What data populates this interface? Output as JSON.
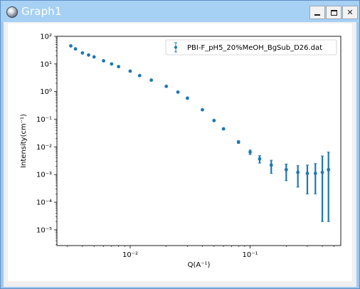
{
  "window": {
    "title": "Graph1",
    "icons": {
      "app": "sphere-icon",
      "minimize": "minimize-icon",
      "maximize": "maximize-icon",
      "close": "close-icon"
    },
    "close_glyph": "✕"
  },
  "chart_data": {
    "type": "scatter",
    "xlabel": "Q(A⁻¹)",
    "ylabel": "Intensity(cm⁻¹)",
    "xscale": "log",
    "yscale": "log",
    "xlim": [
      0.00245,
      0.57
    ],
    "ylim": [
      2.7e-06,
      100
    ],
    "x_ticks": [
      {
        "value": 0.01,
        "label": "10⁻²"
      },
      {
        "value": 0.1,
        "label": "10⁻¹"
      }
    ],
    "y_ticks": [
      {
        "value": 1e-05,
        "label": "10⁻⁵"
      },
      {
        "value": 0.0001,
        "label": "10⁻⁴"
      },
      {
        "value": 0.001,
        "label": "10⁻³"
      },
      {
        "value": 0.01,
        "label": "10⁻²"
      },
      {
        "value": 0.1,
        "label": "10⁻¹"
      },
      {
        "value": 1,
        "label": "10⁰"
      },
      {
        "value": 10,
        "label": "10¹"
      },
      {
        "value": 100,
        "label": "10²"
      }
    ],
    "grid": false,
    "legend_position": "top-right",
    "series": [
      {
        "name": "PBI-F_pH5_20%MeOH_BgSub_D26.dat",
        "color": "#1f77b4",
        "marker": "point with error bars",
        "x": [
          0.0032,
          0.0035,
          0.004,
          0.0045,
          0.005,
          0.006,
          0.007,
          0.008,
          0.01,
          0.012,
          0.015,
          0.02,
          0.025,
          0.03,
          0.04,
          0.05,
          0.06,
          0.08,
          0.1,
          0.12,
          0.15,
          0.2,
          0.25,
          0.3,
          0.35,
          0.4,
          0.45
        ],
        "y": [
          45,
          35,
          25,
          21,
          18,
          13,
          10,
          8,
          5.5,
          3.8,
          2.6,
          1.55,
          0.96,
          0.58,
          0.22,
          0.09,
          0.045,
          0.015,
          0.0065,
          0.0037,
          0.0022,
          0.0015,
          0.0012,
          0.0011,
          0.0011,
          0.0012,
          0.0015
        ],
        "error_lower": [
          1.5,
          1.2,
          0.8,
          0.7,
          0.6,
          0.4,
          0.3,
          0.25,
          0.2,
          0.14,
          0.1,
          0.06,
          0.04,
          0.025,
          0.012,
          0.006,
          0.0035,
          0.0017,
          0.0012,
          0.0011,
          0.0011,
          0.0009,
          0.00085,
          0.0009,
          0.0009,
          0.00118,
          0.00148
        ],
        "error_upper": [
          1.5,
          1.2,
          0.8,
          0.7,
          0.6,
          0.4,
          0.3,
          0.25,
          0.2,
          0.14,
          0.1,
          0.06,
          0.04,
          0.025,
          0.012,
          0.006,
          0.0035,
          0.0017,
          0.0012,
          0.0011,
          0.0011,
          0.0009,
          0.0009,
          0.0011,
          0.0014,
          0.0035,
          0.005
        ]
      }
    ]
  }
}
